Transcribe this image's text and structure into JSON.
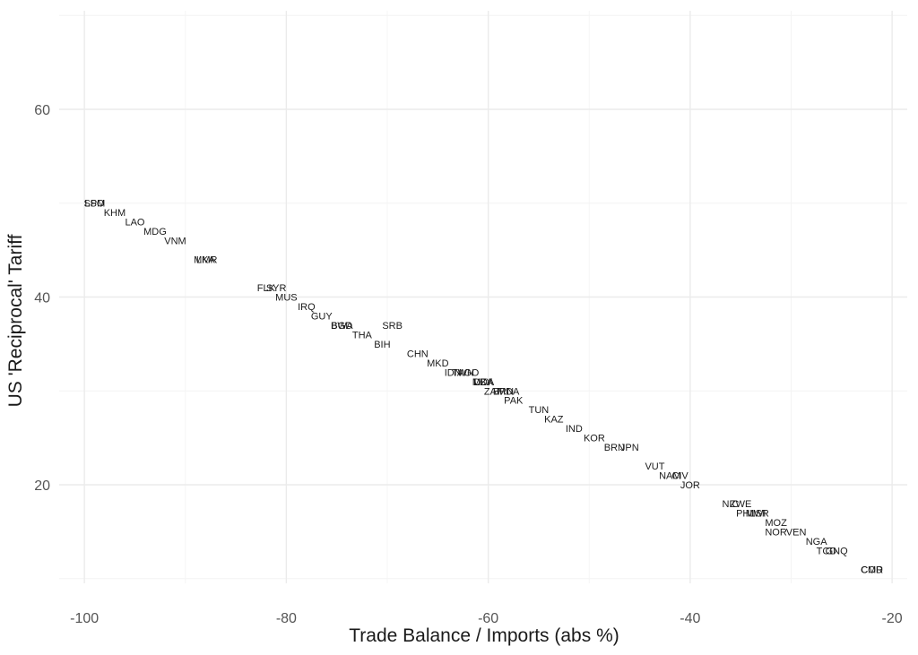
{
  "chart_data": {
    "type": "scatter",
    "title": "",
    "xlabel": "Trade Balance / Imports (abs %)",
    "ylabel": "US 'Reciprocal' Tariff",
    "xlim": [
      -102.5,
      -18.5
    ],
    "ylim": [
      9.5,
      70.5
    ],
    "x_ticks": [
      -100,
      -80,
      -60,
      -40,
      -20
    ],
    "y_ticks": [
      20,
      40,
      60
    ],
    "grid": true,
    "legend": "none",
    "points": [
      {
        "label": "LSO",
        "x": -99.0,
        "y": 50
      },
      {
        "label": "SPM",
        "x": -99.0,
        "y": 50
      },
      {
        "label": "KHM",
        "x": -97.0,
        "y": 49
      },
      {
        "label": "LAO",
        "x": -95.0,
        "y": 48
      },
      {
        "label": "MDG",
        "x": -93.0,
        "y": 47
      },
      {
        "label": "VNM",
        "x": -91.0,
        "y": 46
      },
      {
        "label": "LKA",
        "x": -88.0,
        "y": 44
      },
      {
        "label": "MMR",
        "x": -88.0,
        "y": 44
      },
      {
        "label": "FLK",
        "x": -82.0,
        "y": 41
      },
      {
        "label": "SYR",
        "x": -81.0,
        "y": 41
      },
      {
        "label": "MUS",
        "x": -80.0,
        "y": 40
      },
      {
        "label": "IRQ",
        "x": -78.0,
        "y": 39
      },
      {
        "label": "GUY",
        "x": -76.5,
        "y": 38
      },
      {
        "label": "BWA",
        "x": -74.5,
        "y": 37
      },
      {
        "label": "BGD",
        "x": -74.5,
        "y": 37
      },
      {
        "label": "SRB",
        "x": -69.5,
        "y": 37
      },
      {
        "label": "THA",
        "x": -72.5,
        "y": 36
      },
      {
        "label": "BIH",
        "x": -70.5,
        "y": 35
      },
      {
        "label": "CHN",
        "x": -67.0,
        "y": 34
      },
      {
        "label": "MKD",
        "x": -65.0,
        "y": 33
      },
      {
        "label": "IDN",
        "x": -63.5,
        "y": 32
      },
      {
        "label": "TWN",
        "x": -62.5,
        "y": 32
      },
      {
        "label": "AGO",
        "x": -62.0,
        "y": 32
      },
      {
        "label": "LBY",
        "x": -60.5,
        "y": 31
      },
      {
        "label": "DZA",
        "x": -60.5,
        "y": 31
      },
      {
        "label": "MDA",
        "x": -60.5,
        "y": 31
      },
      {
        "label": "ZAF",
        "x": -59.5,
        "y": 30
      },
      {
        "label": "BRN",
        "x": -58.5,
        "y": 30
      },
      {
        "label": "MDA",
        "x": -58.0,
        "y": 30
      },
      {
        "label": "PAK",
        "x": -57.5,
        "y": 29
      },
      {
        "label": "TUN",
        "x": -55.0,
        "y": 28
      },
      {
        "label": "KAZ",
        "x": -53.5,
        "y": 27
      },
      {
        "label": "IND",
        "x": -51.5,
        "y": 26
      },
      {
        "label": "KOR",
        "x": -49.5,
        "y": 25
      },
      {
        "label": "BRN",
        "x": -47.5,
        "y": 24
      },
      {
        "label": "JPN",
        "x": -46.0,
        "y": 24
      },
      {
        "label": "VUT",
        "x": -43.5,
        "y": 22
      },
      {
        "label": "NAM",
        "x": -42.0,
        "y": 21
      },
      {
        "label": "CIV",
        "x": -41.0,
        "y": 21
      },
      {
        "label": "JOR",
        "x": -40.0,
        "y": 20
      },
      {
        "label": "NIC",
        "x": -36.0,
        "y": 18
      },
      {
        "label": "ZWE",
        "x": -35.0,
        "y": 18
      },
      {
        "label": "PHL",
        "x": -34.5,
        "y": 17
      },
      {
        "label": "MWI",
        "x": -33.5,
        "y": 17
      },
      {
        "label": "ISR",
        "x": -33.0,
        "y": 17
      },
      {
        "label": "MOZ",
        "x": -31.5,
        "y": 16
      },
      {
        "label": "NOR",
        "x": -31.5,
        "y": 15
      },
      {
        "label": "VEN",
        "x": -29.5,
        "y": 15
      },
      {
        "label": "NGA",
        "x": -27.5,
        "y": 14
      },
      {
        "label": "TCD",
        "x": -26.5,
        "y": 13
      },
      {
        "label": "GNQ",
        "x": -25.5,
        "y": 13
      },
      {
        "label": "CMR",
        "x": -22.0,
        "y": 11
      },
      {
        "label": "COD",
        "x": -22.0,
        "y": 11
      }
    ]
  }
}
